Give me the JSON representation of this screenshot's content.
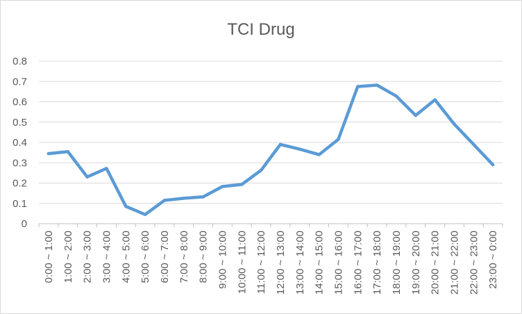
{
  "chart_data": {
    "type": "line",
    "title": "TCI Drug",
    "xlabel": "",
    "ylabel": "",
    "ylim": [
      0,
      0.8
    ],
    "yticks": [
      "0",
      "0.1",
      "0.2",
      "0.3",
      "0.4",
      "0.5",
      "0.6",
      "0.7",
      "0.8"
    ],
    "grid": true,
    "legend": "none",
    "categories": [
      "0:00 ~ 1:00",
      "1:00 ~ 2:00",
      "2:00 ~ 3:00",
      "3:00 ~ 4:00",
      "4:00 ~ 5:00",
      "5:00 ~ 6:00",
      "6:00 ~ 7:00",
      "7:00 ~ 8:00",
      "8:00 ~ 9:00",
      "9:00 ~ 10:00",
      "10:00 ~ 11:00",
      "11:00 ~ 12:00",
      "12:00 ~ 13:00",
      "13:00 ~ 14:00",
      "14:00 ~ 15:00",
      "15:00 ~ 16:00",
      "16:00 ~ 17:00",
      "17:00 ~ 18:00",
      "18:00 ~ 19:00",
      "19:00 ~ 20:00",
      "20:00 ~ 21:00",
      "21:00 ~ 22:00",
      "22:00 ~ 23:00",
      "23:00 ~ 0:00"
    ],
    "series": [
      {
        "color": "#5b9bd5",
        "values": [
          0.345,
          0.355,
          0.23,
          0.272,
          0.085,
          0.045,
          0.115,
          0.125,
          0.132,
          0.183,
          0.193,
          0.263,
          0.39,
          0.367,
          0.34,
          0.415,
          0.675,
          0.682,
          0.628,
          0.533,
          0.61,
          0.49,
          0.39,
          0.29
        ]
      }
    ]
  }
}
